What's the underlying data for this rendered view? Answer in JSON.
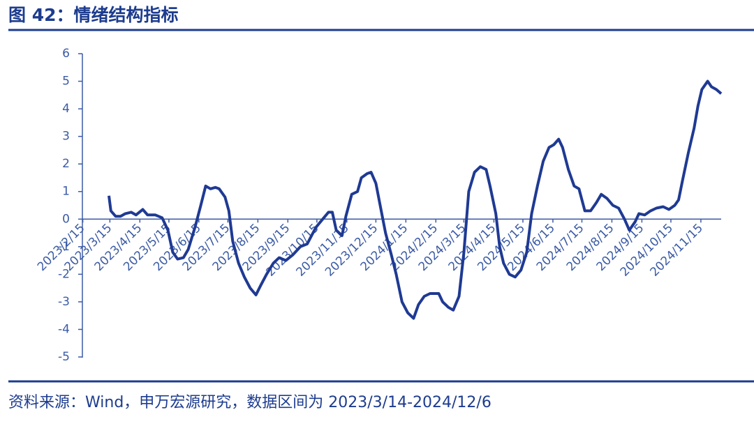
{
  "chart_data": {
    "type": "line",
    "title": "图 42：情绪结构指标",
    "source": "资料来源：Wind，申万宏源研究，数据区间为 2023/3/14-2024/12/6",
    "color": "#1f3a93",
    "x": [
      "2023/3/14",
      "2023/3/16",
      "2023/3/21",
      "2023/3/26",
      "2023/3/31",
      "2023/4/6",
      "2023/4/11",
      "2023/4/18",
      "2023/4/23",
      "2023/5/1",
      "2023/5/8",
      "2023/5/14",
      "2023/5/19",
      "2023/5/24",
      "2023/5/30",
      "2023/6/4",
      "2023/6/11",
      "2023/6/17",
      "2023/6/22",
      "2023/6/27",
      "2023/7/2",
      "2023/7/6",
      "2023/7/12",
      "2023/7/16",
      "2023/7/20",
      "2023/7/26",
      "2023/8/1",
      "2023/8/7",
      "2023/8/13",
      "2023/8/18",
      "2023/8/24",
      "2023/8/31",
      "2023/9/6",
      "2023/9/13",
      "2023/9/20",
      "2023/9/28",
      "2023/10/5",
      "2023/10/14",
      "2023/10/21",
      "2023/10/27",
      "2023/10/31",
      "2023/11/4",
      "2023/11/10",
      "2023/11/14",
      "2023/11/20",
      "2023/11/26",
      "2023/11/30",
      "2023/12/6",
      "2023/12/10",
      "2023/12/15",
      "2023/12/20",
      "2023/12/25",
      "2023/12/31",
      "2024/1/5",
      "2024/1/11",
      "2024/1/17",
      "2024/1/23",
      "2024/1/28",
      "2024/2/3",
      "2024/2/9",
      "2024/2/18",
      "2024/2/22",
      "2024/2/28",
      "2024/3/4",
      "2024/3/10",
      "2024/3/15",
      "2024/3/20",
      "2024/3/26",
      "2024/4/1",
      "2024/4/7",
      "2024/4/11",
      "2024/4/17",
      "2024/4/21",
      "2024/4/25",
      "2024/5/1",
      "2024/5/7",
      "2024/5/13",
      "2024/5/19",
      "2024/5/24",
      "2024/5/30",
      "2024/6/5",
      "2024/6/11",
      "2024/6/16",
      "2024/6/21",
      "2024/6/25",
      "2024/7/1",
      "2024/7/7",
      "2024/7/12",
      "2024/7/18",
      "2024/7/24",
      "2024/7/30",
      "2024/8/4",
      "2024/8/10",
      "2024/8/16",
      "2024/8/22",
      "2024/8/28",
      "2024/9/2",
      "2024/9/8",
      "2024/9/12",
      "2024/9/18",
      "2024/9/24",
      "2024/9/30",
      "2024/10/7",
      "2024/10/13",
      "2024/10/19",
      "2024/10/23",
      "2024/10/27",
      "2024/11/2",
      "2024/11/8",
      "2024/11/12",
      "2024/11/16",
      "2024/11/22",
      "2024/11/26",
      "2024/12/1",
      "2024/12/6"
    ],
    "values": [
      0.85,
      0.3,
      0.1,
      0.1,
      0.2,
      0.25,
      0.15,
      0.35,
      0.15,
      0.15,
      0.05,
      -0.4,
      -1.2,
      -1.45,
      -1.4,
      -1.1,
      -0.3,
      0.5,
      1.2,
      1.1,
      1.15,
      1.1,
      0.8,
      0.3,
      -0.8,
      -1.6,
      -2.1,
      -2.5,
      -2.75,
      -2.4,
      -2.0,
      -1.6,
      -1.4,
      -1.5,
      -1.3,
      -1.0,
      -0.9,
      -0.3,
      0.0,
      0.25,
      0.25,
      -0.4,
      -0.6,
      0.1,
      0.9,
      1.0,
      1.5,
      1.65,
      1.7,
      1.3,
      0.4,
      -0.5,
      -1.3,
      -2.0,
      -3.0,
      -3.4,
      -3.6,
      -3.1,
      -2.8,
      -2.7,
      -2.7,
      -3.0,
      -3.2,
      -3.3,
      -2.8,
      -1.2,
      1.0,
      1.7,
      1.9,
      1.8,
      1.2,
      0.2,
      -1.0,
      -1.6,
      -2.0,
      -2.1,
      -1.85,
      -1.2,
      0.2,
      1.2,
      2.1,
      2.6,
      2.7,
      2.9,
      2.6,
      1.8,
      1.2,
      1.1,
      0.3,
      0.3,
      0.6,
      0.9,
      0.75,
      0.5,
      0.4,
      0.0,
      -0.4,
      -0.1,
      0.2,
      0.15,
      0.3,
      0.4,
      0.45,
      0.35,
      0.5,
      0.7,
      1.4,
      2.4,
      3.3,
      4.1,
      4.7,
      5.0,
      4.8,
      4.7,
      4.55
    ],
    "xlim": [
      "2023/2/15",
      "2024/12/6"
    ],
    "xticks": [
      "2023/2/15",
      "2023/3/15",
      "2023/4/15",
      "2023/5/15",
      "2023/6/15",
      "2023/7/15",
      "2023/8/15",
      "2023/9/15",
      "2023/10/15",
      "2023/11/15",
      "2023/12/15",
      "2024/1/15",
      "2024/2/15",
      "2024/3/15",
      "2024/4/15",
      "2024/5/15",
      "2024/6/15",
      "2024/7/15",
      "2024/8/15",
      "2024/9/15",
      "2024/10/15",
      "2024/11/15"
    ],
    "ylim": [
      -5,
      6
    ],
    "yticks": [
      -5,
      -4,
      -3,
      -2,
      -1,
      0,
      1,
      2,
      3,
      4,
      5,
      6
    ]
  }
}
